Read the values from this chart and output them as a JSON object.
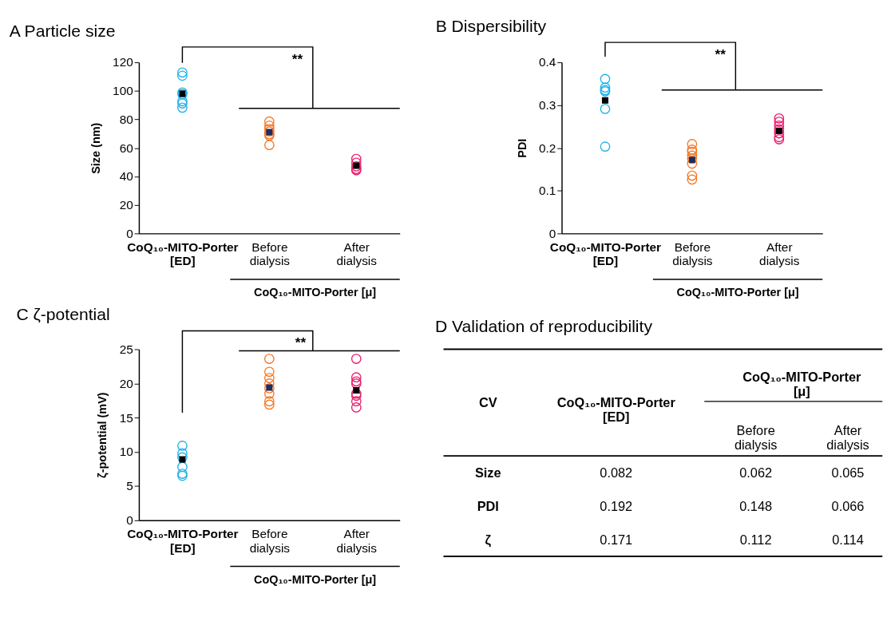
{
  "chart_data": [
    {
      "type": "scatter",
      "title": "A Particle size",
      "ylabel": "Size (nm)",
      "xlabel": "CoQ₁₀-MITO-Porter [μ]",
      "categories": [
        "CoQ₁₀-MITO-Porter [ED]",
        "Before dialysis",
        "After dialysis"
      ],
      "ylim": [
        0,
        120
      ],
      "yticks": [
        0,
        20,
        40,
        60,
        80,
        100,
        120
      ],
      "grid": false,
      "annotations": [
        "**"
      ],
      "series": [
        {
          "color": "#1fb1ea",
          "marker": "circle",
          "x": [
            "CoQ₁₀-MITO-Porter [ED]",
            "CoQ₁₀-MITO-Porter [ED]",
            "CoQ₁₀-MITO-Porter [ED]",
            "CoQ₁₀-MITO-Porter [ED]",
            "CoQ₁₀-MITO-Porter [ED]",
            "CoQ₁₀-MITO-Porter [ED]",
            "CoQ₁₀-MITO-Porter [ED]"
          ],
          "values": [
            112.9,
            110.6,
            98.9,
            97.7,
            92.7,
            91.2,
            88.2
          ]
        },
        {
          "color": "#f5792a",
          "marker": "circle",
          "x": [
            "Before dialysis",
            "Before dialysis",
            "Before dialysis",
            "Before dialysis",
            "Before dialysis",
            "Before dialysis",
            "Before dialysis"
          ],
          "values": [
            78.5,
            75.6,
            73.3,
            71.5,
            69.7,
            68.5,
            62
          ]
        },
        {
          "color": "#ec1e6e",
          "marker": "circle",
          "x": [
            "After dialysis",
            "After dialysis",
            "After dialysis",
            "After dialysis",
            "After dialysis"
          ],
          "values": [
            52.3,
            49.6,
            47,
            45.2,
            44.3
          ]
        },
        {
          "marker": "square",
          "colors": [
            "#000000",
            "#1f2d5a",
            "#000000"
          ],
          "x": [
            "CoQ₁₀-MITO-Porter [ED]",
            "Before dialysis",
            "After dialysis"
          ],
          "values": [
            98,
            71,
            47.5
          ]
        }
      ]
    },
    {
      "type": "scatter",
      "title": "B Dispersibility",
      "ylabel": "PDI",
      "xlabel": "CoQ₁₀-MITO-Porter [μ]",
      "categories": [
        "CoQ₁₀-MITO-Porter [ED]",
        "Before dialysis",
        "After dialysis"
      ],
      "ylim": [
        0,
        0.4
      ],
      "yticks": [
        0,
        0.1,
        0.2,
        0.3,
        0.4
      ],
      "grid": false,
      "annotations": [
        "**"
      ],
      "series": [
        {
          "color": "#1fb1ea",
          "marker": "circle",
          "x": [
            "CoQ₁₀-MITO-Porter [ED]",
            "CoQ₁₀-MITO-Porter [ED]",
            "CoQ₁₀-MITO-Porter [ED]",
            "CoQ₁₀-MITO-Porter [ED]",
            "CoQ₁₀-MITO-Porter [ED]",
            "CoQ₁₀-MITO-Porter [ED]"
          ],
          "values": [
            0.361,
            0.341,
            0.335,
            0.332,
            0.291,
            0.203
          ]
        },
        {
          "color": "#f5792a",
          "marker": "circle",
          "x": [
            "Before dialysis",
            "Before dialysis",
            "Before dialysis",
            "Before dialysis",
            "Before dialysis",
            "Before dialysis",
            "Before dialysis",
            "Before dialysis"
          ],
          "values": [
            0.209,
            0.196,
            0.191,
            0.182,
            0.175,
            0.163,
            0.135,
            0.126
          ]
        },
        {
          "color": "#ec1e6e",
          "marker": "circle",
          "x": [
            "After dialysis",
            "After dialysis",
            "After dialysis",
            "After dialysis",
            "After dialysis",
            "After dialysis",
            "After dialysis"
          ],
          "values": [
            0.269,
            0.261,
            0.252,
            0.243,
            0.234,
            0.225,
            0.22
          ]
        },
        {
          "marker": "square",
          "colors": [
            "#000000",
            "#1f2d5a",
            "#000000"
          ],
          "x": [
            "CoQ₁₀-MITO-Porter [ED]",
            "Before dialysis",
            "After dialysis"
          ],
          "values": [
            0.311,
            0.172,
            0.24
          ]
        }
      ]
    },
    {
      "type": "scatter",
      "title": "C ζ-potential",
      "ylabel": "ζ-potential  (mV)",
      "xlabel": "CoQ₁₀-MITO-Porter [μ]",
      "categories": [
        "CoQ₁₀-MITO-Porter [ED]",
        "Before dialysis",
        "After dialysis"
      ],
      "ylim": [
        0,
        25
      ],
      "yticks": [
        0,
        5,
        10,
        15,
        20,
        25
      ],
      "grid": false,
      "annotations": [
        "**"
      ],
      "series": [
        {
          "color": "#1fb1ea",
          "marker": "circle",
          "x": [
            "CoQ₁₀-MITO-Porter [ED]",
            "CoQ₁₀-MITO-Porter [ED]",
            "CoQ₁₀-MITO-Porter [ED]",
            "CoQ₁₀-MITO-Porter [ED]",
            "CoQ₁₀-MITO-Porter [ED]",
            "CoQ₁₀-MITO-Porter [ED]"
          ],
          "values": [
            10.9,
            9.8,
            9.2,
            7.8,
            6.8,
            6.5
          ]
        },
        {
          "color": "#f5792a",
          "marker": "circle",
          "x": [
            "Before dialysis",
            "Before dialysis",
            "Before dialysis",
            "Before dialysis",
            "Before dialysis",
            "Before dialysis",
            "Before dialysis",
            "Before dialysis"
          ],
          "values": [
            23.6,
            21.7,
            20.8,
            20,
            19.3,
            18.5,
            17.4,
            16.9
          ]
        },
        {
          "color": "#ec1e6e",
          "marker": "circle",
          "x": [
            "After dialysis",
            "After dialysis",
            "After dialysis",
            "After dialysis",
            "After dialysis",
            "After dialysis",
            "After dialysis",
            "After dialysis"
          ],
          "values": [
            23.6,
            20.9,
            20.3,
            20,
            18.5,
            18.2,
            17.4,
            16.5
          ]
        },
        {
          "marker": "square",
          "colors": [
            "#000000",
            "#1f2d5a",
            "#000000"
          ],
          "x": [
            "CoQ₁₀-MITO-Porter [ED]",
            "Before dialysis",
            "After dialysis"
          ],
          "values": [
            8.9,
            19.4,
            19
          ]
        }
      ]
    },
    {
      "type": "other",
      "title": "D Validation of reproducibility",
      "categories": [
        "CV",
        "CoQ₁₀-MITO-Porter [ED]",
        "Before dialysis",
        "After dialysis"
      ],
      "xlabel": "CoQ₁₀-MITO-Porter [μ]",
      "y_categories": [
        "Size",
        "PDI",
        "ζ"
      ],
      "cell_labels": [
        [
          "0.082",
          "0.062",
          "0.065"
        ],
        [
          "0.192",
          "0.148",
          "0.066"
        ],
        [
          "0.171",
          "0.112",
          "0.114"
        ]
      ]
    }
  ]
}
